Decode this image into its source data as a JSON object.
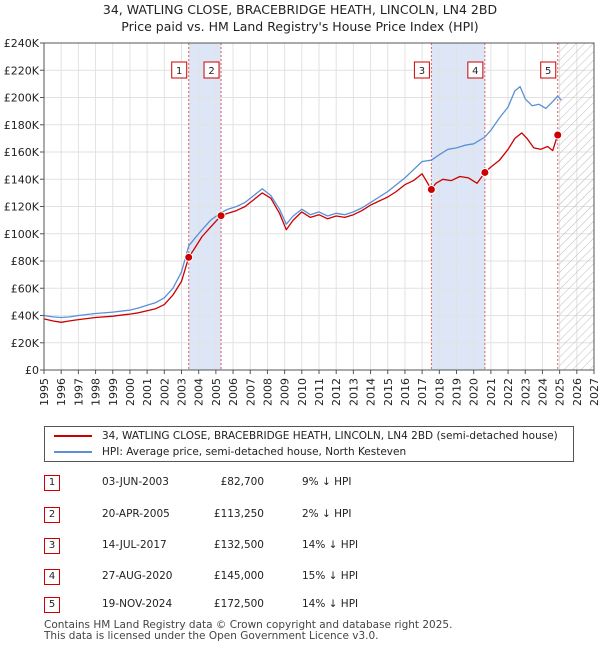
{
  "title_line1": "34, WATLING CLOSE, BRACEBRIDGE HEATH, LINCOLN, LN4 2BD",
  "title_line2": "Price paid vs. HM Land Registry's House Price Index (HPI)",
  "chart_data": {
    "type": "line",
    "x_range": [
      1995,
      2027
    ],
    "ylim": [
      0,
      240000
    ],
    "y_ticks": [
      0,
      20000,
      40000,
      60000,
      80000,
      100000,
      120000,
      140000,
      160000,
      180000,
      200000,
      220000,
      240000
    ],
    "y_tick_labels": [
      "£0",
      "£20K",
      "£40K",
      "£60K",
      "£80K",
      "£100K",
      "£120K",
      "£140K",
      "£160K",
      "£180K",
      "£200K",
      "£220K",
      "£240K"
    ],
    "x_ticks": [
      1995,
      1996,
      1997,
      1998,
      1999,
      2000,
      2001,
      2002,
      2003,
      2004,
      2005,
      2006,
      2007,
      2008,
      2009,
      2010,
      2011,
      2012,
      2013,
      2014,
      2015,
      2016,
      2017,
      2018,
      2019,
      2020,
      2021,
      2022,
      2023,
      2024,
      2025,
      2026,
      2027
    ],
    "grid": true,
    "hatch_from": 2024.9,
    "shaded_periods": [
      [
        2003.42,
        2005.3
      ],
      [
        2017.54,
        2020.65
      ]
    ],
    "series": [
      {
        "name": "34, WATLING CLOSE, BRACEBRIDGE HEATH, LINCOLN, LN4 2BD (semi-detached house)",
        "color": "#cc0000",
        "points": [
          [
            1995,
            37500
          ],
          [
            1995.5,
            36000
          ],
          [
            1996,
            35000
          ],
          [
            1996.5,
            36000
          ],
          [
            1997,
            37000
          ],
          [
            1998,
            38500
          ],
          [
            1999,
            39500
          ],
          [
            2000,
            41000
          ],
          [
            2000.5,
            42000
          ],
          [
            2001,
            43500
          ],
          [
            2001.5,
            45000
          ],
          [
            2002,
            48000
          ],
          [
            2002.5,
            55000
          ],
          [
            2003,
            65000
          ],
          [
            2003.42,
            82700
          ],
          [
            2003.7,
            88000
          ],
          [
            2004.2,
            98000
          ],
          [
            2004.7,
            105000
          ],
          [
            2005.3,
            113250
          ],
          [
            2005.7,
            115000
          ],
          [
            2006.2,
            117000
          ],
          [
            2006.7,
            120000
          ],
          [
            2007.2,
            125000
          ],
          [
            2007.7,
            130000
          ],
          [
            2008.2,
            126000
          ],
          [
            2008.7,
            115000
          ],
          [
            2009.1,
            103000
          ],
          [
            2009.5,
            110000
          ],
          [
            2010,
            116000
          ],
          [
            2010.5,
            112000
          ],
          [
            2011,
            114000
          ],
          [
            2011.5,
            111000
          ],
          [
            2012,
            113000
          ],
          [
            2012.5,
            112000
          ],
          [
            2013,
            114000
          ],
          [
            2013.5,
            117000
          ],
          [
            2014,
            121000
          ],
          [
            2014.5,
            124000
          ],
          [
            2015,
            127000
          ],
          [
            2015.5,
            131000
          ],
          [
            2016,
            136000
          ],
          [
            2016.5,
            139000
          ],
          [
            2017,
            144000
          ],
          [
            2017.54,
            132500
          ],
          [
            2017.8,
            137000
          ],
          [
            2018.2,
            140000
          ],
          [
            2018.7,
            139000
          ],
          [
            2019.2,
            142000
          ],
          [
            2019.7,
            141000
          ],
          [
            2020.2,
            137000
          ],
          [
            2020.65,
            145000
          ],
          [
            2021,
            149000
          ],
          [
            2021.5,
            154000
          ],
          [
            2022,
            162000
          ],
          [
            2022.4,
            170000
          ],
          [
            2022.8,
            174000
          ],
          [
            2023.1,
            170000
          ],
          [
            2023.5,
            163000
          ],
          [
            2023.9,
            162000
          ],
          [
            2024.3,
            164000
          ],
          [
            2024.6,
            161000
          ],
          [
            2024.89,
            172500
          ],
          [
            2025.1,
            171000
          ]
        ]
      },
      {
        "name": "HPI: Average price, semi-detached house, North Kesteven",
        "color": "#5b8fd6",
        "points": [
          [
            1995,
            40000
          ],
          [
            1995.5,
            39000
          ],
          [
            1996,
            38500
          ],
          [
            1996.5,
            39000
          ],
          [
            1997,
            40000
          ],
          [
            1998,
            41500
          ],
          [
            1999,
            42500
          ],
          [
            2000,
            44000
          ],
          [
            2000.5,
            45500
          ],
          [
            2001,
            47500
          ],
          [
            2001.5,
            49500
          ],
          [
            2002,
            53000
          ],
          [
            2002.5,
            60000
          ],
          [
            2003,
            72000
          ],
          [
            2003.42,
            91000
          ],
          [
            2003.8,
            97000
          ],
          [
            2004.2,
            103000
          ],
          [
            2004.7,
            110000
          ],
          [
            2005.3,
            115500
          ],
          [
            2005.7,
            118000
          ],
          [
            2006.2,
            120000
          ],
          [
            2006.7,
            123000
          ],
          [
            2007.2,
            128000
          ],
          [
            2007.7,
            133000
          ],
          [
            2008.2,
            128000
          ],
          [
            2008.7,
            118000
          ],
          [
            2009.1,
            107000
          ],
          [
            2009.5,
            113000
          ],
          [
            2010,
            118000
          ],
          [
            2010.5,
            114000
          ],
          [
            2011,
            116000
          ],
          [
            2011.5,
            113000
          ],
          [
            2012,
            115000
          ],
          [
            2012.5,
            114000
          ],
          [
            2013,
            116000
          ],
          [
            2013.5,
            119000
          ],
          [
            2014,
            123000
          ],
          [
            2014.5,
            127000
          ],
          [
            2015,
            131000
          ],
          [
            2015.5,
            136000
          ],
          [
            2016,
            141000
          ],
          [
            2016.5,
            147000
          ],
          [
            2017,
            153000
          ],
          [
            2017.54,
            154000
          ],
          [
            2018,
            158000
          ],
          [
            2018.5,
            162000
          ],
          [
            2019,
            163000
          ],
          [
            2019.5,
            165000
          ],
          [
            2020,
            166000
          ],
          [
            2020.65,
            171000
          ],
          [
            2021,
            176000
          ],
          [
            2021.5,
            185000
          ],
          [
            2022,
            193000
          ],
          [
            2022.4,
            205000
          ],
          [
            2022.7,
            208000
          ],
          [
            2023,
            199000
          ],
          [
            2023.4,
            194000
          ],
          [
            2023.8,
            195000
          ],
          [
            2024.2,
            192000
          ],
          [
            2024.6,
            197000
          ],
          [
            2024.89,
            201000
          ],
          [
            2025.1,
            198000
          ]
        ]
      }
    ],
    "sales": [
      {
        "n": "1",
        "x": 2003.42,
        "price": 82700
      },
      {
        "n": "2",
        "x": 2005.3,
        "price": 113250
      },
      {
        "n": "3",
        "x": 2017.54,
        "price": 132500
      },
      {
        "n": "4",
        "x": 2020.65,
        "price": 145000
      },
      {
        "n": "5",
        "x": 2024.89,
        "price": 172500
      }
    ]
  },
  "legend": {
    "property_label": "34, WATLING CLOSE, BRACEBRIDGE HEATH, LINCOLN, LN4 2BD (semi-detached house)",
    "hpi_label": "HPI: Average price, semi-detached house, North Kesteven"
  },
  "transactions": [
    {
      "num": "1",
      "date": "03-JUN-2003",
      "price": "£82,700",
      "hpi": "9% ↓ HPI"
    },
    {
      "num": "2",
      "date": "20-APR-2005",
      "price": "£113,250",
      "hpi": "2% ↓ HPI"
    },
    {
      "num": "3",
      "date": "14-JUL-2017",
      "price": "£132,500",
      "hpi": "14% ↓ HPI"
    },
    {
      "num": "4",
      "date": "27-AUG-2020",
      "price": "£145,000",
      "hpi": "15% ↓ HPI"
    },
    {
      "num": "5",
      "date": "19-NOV-2024",
      "price": "£172,500",
      "hpi": "14% ↓ HPI"
    }
  ],
  "footer": {
    "line1": "Contains HM Land Registry data © Crown copyright and database right 2025.",
    "line2": "This data is licensed under the Open Government Licence v3.0."
  }
}
